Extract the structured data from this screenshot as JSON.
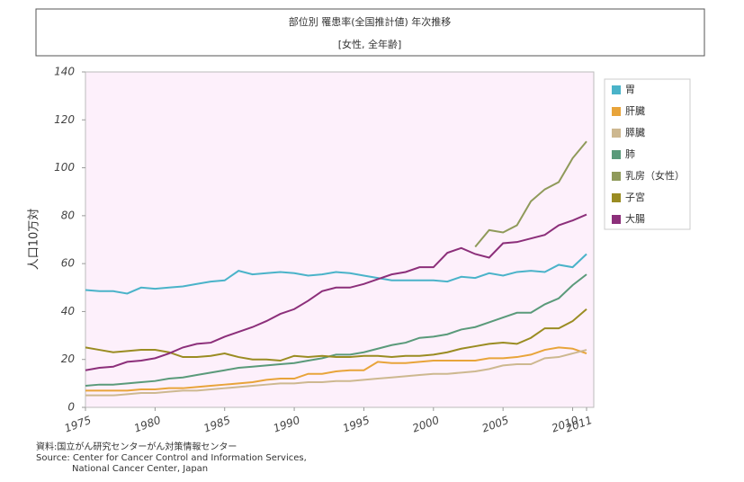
{
  "chart_data": {
    "type": "line",
    "title": "部位別 罹患率(全国推計値) 年次推移",
    "subtitle": "[女性, 全年齢]",
    "y_label": "人口10万対",
    "source": [
      "資料:国立がん研究センターがん対策情報センター",
      "Source: Center for Cancer Control and Information Services,",
      "National Cancer Center, Japan"
    ],
    "x": [
      1975,
      1976,
      1977,
      1978,
      1979,
      1980,
      1981,
      1982,
      1983,
      1984,
      1985,
      1986,
      1987,
      1988,
      1989,
      1990,
      1991,
      1992,
      1993,
      1994,
      1995,
      1996,
      1997,
      1998,
      1999,
      2000,
      2001,
      2002,
      2003,
      2004,
      2005,
      2006,
      2007,
      2008,
      2009,
      2010,
      2011
    ],
    "xlim": [
      1975,
      2011
    ],
    "xticks": [
      1975,
      1980,
      1985,
      1990,
      1995,
      2000,
      2005,
      2010,
      2011
    ],
    "ylim": [
      0,
      140
    ],
    "yticks": [
      0,
      20,
      40,
      60,
      80,
      100,
      120,
      140
    ],
    "grid": false,
    "legend": "right",
    "series": [
      {
        "name": "胃",
        "color": "#4ab3c9",
        "values": [
          49,
          48.5,
          48.5,
          47.5,
          50,
          49.5,
          50,
          50.5,
          51.5,
          52.5,
          53,
          57,
          55.5,
          56,
          56.5,
          56,
          55,
          55.5,
          56.5,
          56,
          55,
          54,
          53,
          53,
          53,
          53,
          52.5,
          54.5,
          54,
          56,
          55,
          56.5,
          57,
          56.5,
          59.5,
          58.5,
          64
        ]
      },
      {
        "name": "肝臓",
        "color": "#e8a43a",
        "values": [
          7,
          7,
          7,
          7,
          7.5,
          7.5,
          8,
          8,
          8.5,
          9,
          9.5,
          10,
          10.5,
          11.5,
          12,
          12,
          14,
          14,
          15,
          15.5,
          15.5,
          19,
          18.5,
          18.5,
          19,
          19.5,
          19.5,
          19.5,
          19.5,
          20.5,
          20.5,
          21,
          22,
          24,
          25,
          24.5,
          22.5
        ]
      },
      {
        "name": "膵臓",
        "color": "#cdb890",
        "values": [
          5,
          5,
          5,
          5.5,
          6,
          6,
          6.5,
          7,
          7,
          7.5,
          8,
          8.5,
          9,
          9.5,
          10,
          10,
          10.5,
          10.5,
          11,
          11,
          11.5,
          12,
          12.5,
          13,
          13.5,
          14,
          14,
          14.5,
          15,
          16,
          17.5,
          18,
          18,
          20.5,
          21,
          22.5,
          24
        ]
      },
      {
        "name": "肺",
        "color": "#5a9a7a",
        "values": [
          9,
          9.5,
          9.5,
          10,
          10.5,
          11,
          12,
          12.5,
          13.5,
          14.5,
          15.5,
          16.5,
          17,
          17.5,
          18,
          18.5,
          19.5,
          20.5,
          22,
          22,
          23,
          24.5,
          26,
          27,
          29,
          29.5,
          30.5,
          32.5,
          33.5,
          35.5,
          37.5,
          39.5,
          39.5,
          43,
          45.5,
          51,
          55.5
        ]
      },
      {
        "name": "乳房（女性）",
        "color": "#8f9a5a",
        "values": [
          null,
          null,
          null,
          null,
          null,
          null,
          null,
          null,
          null,
          null,
          null,
          null,
          null,
          null,
          null,
          null,
          null,
          null,
          null,
          null,
          null,
          null,
          null,
          null,
          null,
          null,
          null,
          null,
          67,
          74,
          73,
          76,
          86,
          91,
          94,
          104,
          111
        ]
      },
      {
        "name": "子宮",
        "color": "#9a8c22",
        "values": [
          25,
          24,
          23,
          23.5,
          24,
          24,
          23,
          21,
          21,
          21.5,
          22.5,
          21,
          20,
          20,
          19.5,
          21.5,
          21,
          21.5,
          21,
          21,
          21.5,
          21.5,
          21,
          21.5,
          21.5,
          22,
          23,
          24.5,
          25.5,
          26.5,
          27,
          26.5,
          29,
          33,
          33,
          36,
          41
        ]
      },
      {
        "name": "大腸",
        "color": "#8c2f7a",
        "values": [
          15.5,
          16.5,
          17,
          19,
          19.5,
          20.5,
          22.5,
          25,
          26.5,
          27,
          29.5,
          31.5,
          33.5,
          36,
          39,
          41,
          44.5,
          48.5,
          50,
          50,
          51.5,
          53.5,
          55.5,
          56.5,
          58.5,
          58.5,
          64.5,
          66.5,
          64,
          62.5,
          68.5,
          69,
          70.5,
          72,
          76,
          78,
          80.5
        ]
      }
    ]
  }
}
